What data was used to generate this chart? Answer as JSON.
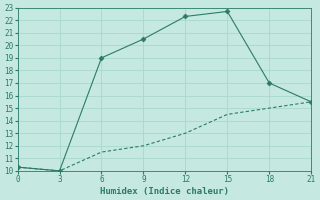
{
  "xlabel": "Humidex (Indice chaleur)",
  "line1_x": [
    0,
    3,
    6,
    9,
    12,
    15,
    18,
    21
  ],
  "line1_y": [
    10.3,
    10.0,
    19.0,
    20.5,
    22.3,
    22.7,
    17.0,
    15.5
  ],
  "line2_x": [
    0,
    3,
    6,
    9,
    12,
    15,
    18,
    21
  ],
  "line2_y": [
    10.3,
    10.0,
    11.5,
    12.0,
    13.0,
    14.5,
    15.0,
    15.5
  ],
  "line_color": "#2d7a6a",
  "bg_color": "#c5e8e0",
  "grid_color": "#a8d8ce",
  "xlim": [
    0,
    21
  ],
  "ylim": [
    10,
    23
  ],
  "xticks": [
    0,
    3,
    6,
    9,
    12,
    15,
    18,
    21
  ],
  "yticks": [
    10,
    11,
    12,
    13,
    14,
    15,
    16,
    17,
    18,
    19,
    20,
    21,
    22,
    23
  ],
  "label_fontsize": 6.5,
  "tick_fontsize": 5.5
}
